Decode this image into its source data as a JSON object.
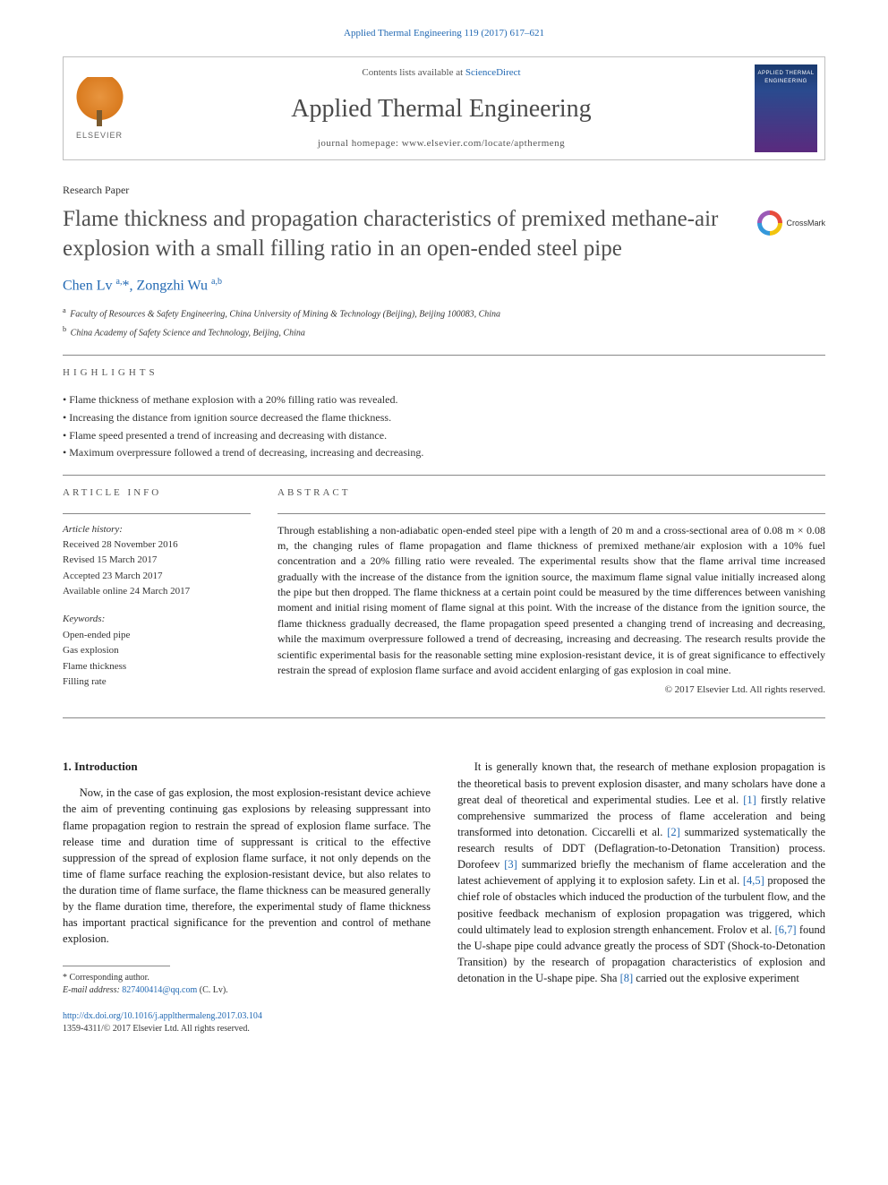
{
  "citation": "Applied Thermal Engineering 119 (2017) 617–621",
  "header": {
    "contents_prefix": "Contents lists available at ",
    "contents_link": "ScienceDirect",
    "journal_name": "Applied Thermal Engineering",
    "homepage_prefix": "journal homepage: ",
    "homepage_url": "www.elsevier.com/locate/apthermeng",
    "publisher_label": "ELSEVIER",
    "cover_title": "APPLIED THERMAL ENGINEERING"
  },
  "article_type": "Research Paper",
  "title": "Flame thickness and propagation characteristics of premixed methane-air explosion with a small filling ratio in an open-ended steel pipe",
  "crossmark_label": "CrossMark",
  "authors_html": "Chen Lv <sup>a,</sup>*, Zongzhi Wu <sup>a,b</sup>",
  "affiliations": [
    {
      "sup": "a",
      "text": "Faculty of Resources & Safety Engineering, China University of Mining & Technology (Beijing), Beijing 100083, China"
    },
    {
      "sup": "b",
      "text": "China Academy of Safety Science and Technology, Beijing, China"
    }
  ],
  "highlights": {
    "heading": "HIGHLIGHTS",
    "items": [
      "Flame thickness of methane explosion with a 20% filling ratio was revealed.",
      "Increasing the distance from ignition source decreased the flame thickness.",
      "Flame speed presented a trend of increasing and decreasing with distance.",
      "Maximum overpressure followed a trend of decreasing, increasing and decreasing."
    ]
  },
  "article_info": {
    "heading": "ARTICLE INFO",
    "history_label": "Article history:",
    "history": [
      "Received 28 November 2016",
      "Revised 15 March 2017",
      "Accepted 23 March 2017",
      "Available online 24 March 2017"
    ],
    "keywords_label": "Keywords:",
    "keywords": [
      "Open-ended pipe",
      "Gas explosion",
      "Flame thickness",
      "Filling rate"
    ]
  },
  "abstract": {
    "heading": "ABSTRACT",
    "text": "Through establishing a non-adiabatic open-ended steel pipe with a length of 20 m and a cross-sectional area of 0.08 m × 0.08 m, the changing rules of flame propagation and flame thickness of premixed methane/air explosion with a 10% fuel concentration and a 20% filling ratio were revealed. The experimental results show that the flame arrival time increased gradually with the increase of the distance from the ignition source, the maximum flame signal value initially increased along the pipe but then dropped. The flame thickness at a certain point could be measured by the time differences between vanishing moment and initial rising moment of flame signal at this point. With the increase of the distance from the ignition source, the flame thickness gradually decreased, the flame propagation speed presented a changing trend of increasing and decreasing, while the maximum overpressure followed a trend of decreasing, increasing and decreasing. The research results provide the scientific experimental basis for the reasonable setting mine explosion-resistant device, it is of great significance to effectively restrain the spread of explosion flame surface and avoid accident enlarging of gas explosion in coal mine.",
    "copyright": "© 2017 Elsevier Ltd. All rights reserved."
  },
  "body": {
    "section_number": "1.",
    "section_title": "Introduction",
    "col1_p1": "Now, in the case of gas explosion, the most explosion-resistant device achieve the aim of preventing continuing gas explosions by releasing suppressant into flame propagation region to restrain the spread of explosion flame surface. The release time and duration time of suppressant is critical to the effective suppression of the spread of explosion flame surface, it not only depends on the time of flame surface reaching the explosion-resistant device, but also relates to the duration time of flame surface, the flame thickness can be measured generally by the flame duration time, therefore, the experimental study of flame thickness has important practical significance for the prevention and control of methane explosion.",
    "col2_p1_pre": "It is generally known that, the research of methane explosion propagation is the theoretical basis to prevent explosion disaster, and many scholars have done a great deal of theoretical and experimental studies. Lee et al. ",
    "ref1": "[1]",
    "col2_p1_a": " firstly relative comprehensive summarized the process of flame acceleration and being transformed into detonation. Ciccarelli et al. ",
    "ref2": "[2]",
    "col2_p1_b": " summarized systematically the research results of DDT (Deflagration-to-Detonation Transition) process. Dorofeev ",
    "ref3": "[3]",
    "col2_p1_c": " summarized briefly the mechanism of flame acceleration and the latest achievement of applying it to explosion safety. Lin et al. ",
    "ref45": "[4,5]",
    "col2_p1_d": " proposed the chief role of obstacles which induced the production of the turbulent flow, and the positive feedback mechanism of explosion propagation was triggered, which could ultimately lead to explosion strength enhancement. Frolov et al. ",
    "ref67": "[6,7]",
    "col2_p1_e": " found the U-shape pipe could advance greatly the process of SDT (Shock-to-Detonation Transition) by the research of propagation characteristics of explosion and detonation in the U-shape pipe. Sha ",
    "ref8": "[8]",
    "col2_p1_f": " carried out the explosive experiment"
  },
  "footnote": {
    "corr_label": "* Corresponding author.",
    "email_label": "E-mail address:",
    "email": "827400414@qq.com",
    "email_name": "(C. Lv)."
  },
  "footer": {
    "doi": "http://dx.doi.org/10.1016/j.applthermaleng.2017.03.104",
    "issn": "1359-4311/© 2017 Elsevier Ltd. All rights reserved."
  },
  "colors": {
    "link": "#2269b3",
    "text": "#1a1a1a",
    "heading_gray": "#505050",
    "rule": "#888888"
  }
}
